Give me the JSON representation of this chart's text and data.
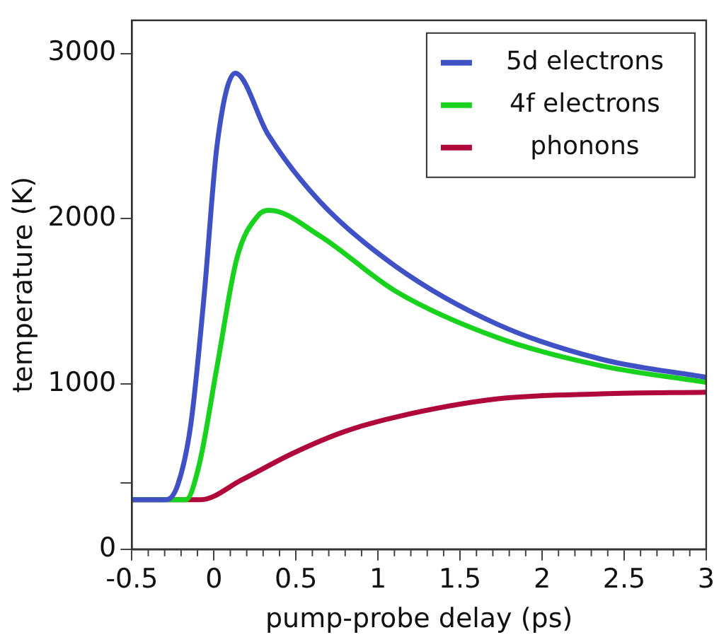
{
  "chart_data": {
    "type": "line",
    "xlabel": "pump-probe delay (ps)",
    "ylabel": "temperature (K)",
    "xlim": [
      -0.5,
      3
    ],
    "xticks": [
      -0.5,
      0,
      0.5,
      1,
      1.5,
      2,
      2.5,
      3
    ],
    "ylim": [
      0,
      3200
    ],
    "yticks": [
      0,
      {
        "value": 400,
        "label": null
      },
      1000,
      2000,
      3000
    ],
    "legend": "top right",
    "grid": false,
    "marker": "none",
    "line_style": "solid",
    "series": [
      {
        "name": "5d electrons",
        "color": "#3f51c4",
        "x": [
          -0.5,
          -0.29,
          -0.22,
          -0.14,
          -0.06,
          0.02,
          0.13,
          0.33,
          0.64,
          1.11,
          1.73,
          2.36,
          3
        ],
        "values": [
          300,
          300,
          390,
          760,
          1530,
          2450,
          2880,
          2510,
          2110,
          1710,
          1360,
          1150,
          1040
        ]
      },
      {
        "name": "4f electrons",
        "color": "#19d21e",
        "x": [
          -0.5,
          -0.17,
          -0.09,
          0.02,
          0.14,
          0.27,
          0.34,
          0.64,
          1.11,
          1.73,
          2.36,
          3
        ],
        "values": [
          300,
          300,
          510,
          1110,
          1760,
          2020,
          2050,
          1900,
          1560,
          1280,
          1110,
          1010
        ]
      },
      {
        "name": "phonons",
        "color": "#b0083a",
        "x": [
          -0.5,
          -0.08,
          0.17,
          0.48,
          0.79,
          1.11,
          1.73,
          2.36,
          3
        ],
        "values": [
          300,
          300,
          420,
          580,
          710,
          800,
          910,
          940,
          950
        ]
      }
    ]
  }
}
